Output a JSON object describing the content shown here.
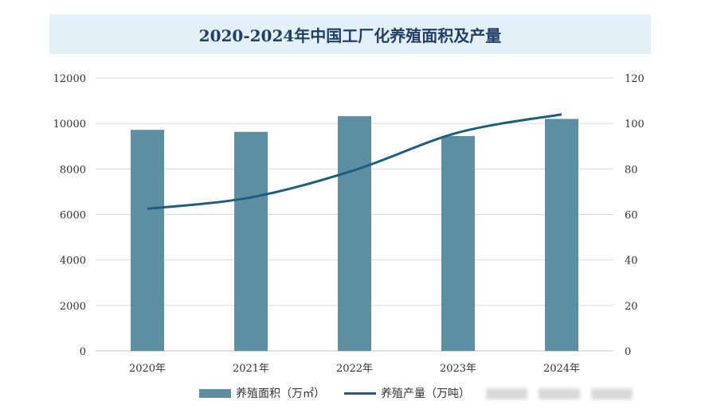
{
  "chart_data": {
    "type": "bar+line",
    "title": "2020-2024年中国工厂化养殖面积及产量",
    "categories": [
      "2020年",
      "2021年",
      "2022年",
      "2023年",
      "2024年"
    ],
    "series": [
      {
        "name": "养殖面积（万㎡）",
        "type": "bar",
        "axis": "left",
        "values": [
          9720,
          9630,
          10320,
          9450,
          10200
        ]
      },
      {
        "name": "养殖产量（万吨）",
        "type": "line",
        "axis": "right",
        "values": [
          62.5,
          67.5,
          79.5,
          96,
          104
        ]
      }
    ],
    "ylim_left": [
      0,
      12000
    ],
    "yticks_left": [
      "0",
      "2000",
      "4000",
      "6000",
      "8000",
      "10000",
      "12000"
    ],
    "ylim_right": [
      0,
      120
    ],
    "yticks_right": [
      "0",
      "20",
      "40",
      "60",
      "80",
      "100",
      "120"
    ],
    "grid": true,
    "legend": "bottom",
    "colors": {
      "bar": "#5d8fa3",
      "line": "#1b5e80",
      "title_bg": "#e3f0f7",
      "title_text": "#1f3f66"
    }
  }
}
